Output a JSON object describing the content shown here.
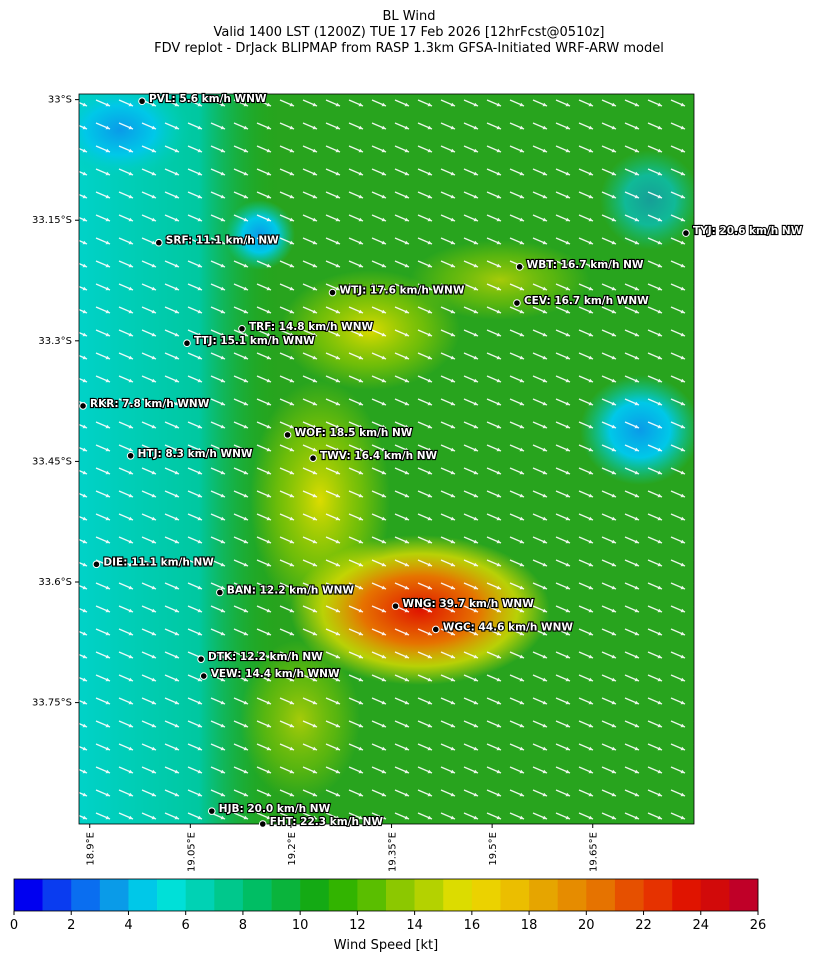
{
  "chart_data": {
    "type": "map",
    "title": "BL Wind",
    "subtitle": "Valid 1400 LST (1200Z) TUE 17 Feb 2026 [12hrFcst@0510z]",
    "subtitle2": "FDV replot - DrJack BLIPMAP from RASP 1.3km GFSA-Initiated WRF-ARW model",
    "xlim": [
      18.884,
      19.801
    ],
    "ylim": [
      -33.901,
      -32.993
    ],
    "xticks": [
      {
        "value": 18.9,
        "label": "18.9°E"
      },
      {
        "value": 19.05,
        "label": "19.05°E"
      },
      {
        "value": 19.2,
        "label": "19.2°E"
      },
      {
        "value": 19.35,
        "label": "19.35°E"
      },
      {
        "value": 19.5,
        "label": "19.5°E"
      },
      {
        "value": 19.65,
        "label": "19.65°E"
      }
    ],
    "yticks": [
      {
        "value": -33,
        "label": "33°S"
      },
      {
        "value": -33.15,
        "label": "33.15°S"
      },
      {
        "value": -33.3,
        "label": "33.3°S"
      },
      {
        "value": -33.45,
        "label": "33.45°S"
      },
      {
        "value": -33.6,
        "label": "33.6°S"
      },
      {
        "value": -33.75,
        "label": "33.75°S"
      }
    ],
    "stations": [
      {
        "label": "PVL: 5.6 km/h WNW",
        "lon": 18.978,
        "lat": -33.002
      },
      {
        "label": "SRF: 11.1 km/h NW",
        "lon": 19.003,
        "lat": -33.178
      },
      {
        "label": "TYJ: 20.6 km/h NW",
        "lon": 19.789,
        "lat": -33.166
      },
      {
        "label": "WBT: 16.7 km/h NW",
        "lon": 19.541,
        "lat": -33.208
      },
      {
        "label": "WTJ: 17.6 km/h WNW",
        "lon": 19.262,
        "lat": -33.24
      },
      {
        "label": "CEV: 16.7 km/h WNW",
        "lon": 19.537,
        "lat": -33.253
      },
      {
        "label": "TRF: 14.8 km/h WNW",
        "lon": 19.127,
        "lat": -33.285
      },
      {
        "label": "TTJ: 15.1 km/h WNW",
        "lon": 19.045,
        "lat": -33.303
      },
      {
        "label": "RKR: 7.8 km/h WNW",
        "lon": 18.89,
        "lat": -33.381
      },
      {
        "label": "WOF: 18.5 km/h NW",
        "lon": 19.195,
        "lat": -33.417
      },
      {
        "label": "HTJ: 8.3 km/h WNW",
        "lon": 18.961,
        "lat": -33.443
      },
      {
        "label": "TWV: 16.4 km/h NW",
        "lon": 19.233,
        "lat": -33.446
      },
      {
        "label": "DIE: 11.1 km/h NW",
        "lon": 18.91,
        "lat": -33.578
      },
      {
        "label": "BAN: 12.2 km/h WNW",
        "lon": 19.094,
        "lat": -33.613
      },
      {
        "label": "WNG: 39.7 km/h WNW",
        "lon": 19.356,
        "lat": -33.63
      },
      {
        "label": "WGC: 44.6 km/h WNW",
        "lon": 19.416,
        "lat": -33.659
      },
      {
        "label": "DTK: 12.2 km/h NW",
        "lon": 19.066,
        "lat": -33.696
      },
      {
        "label": "VEW: 14.4 km/h WNW",
        "lon": 19.07,
        "lat": -33.717
      },
      {
        "label": "HJB: 20.0 km/h NW",
        "lon": 19.082,
        "lat": -33.885
      },
      {
        "label": "FHT: 22.3 km/h NW",
        "lon": 19.158,
        "lat": -33.901
      }
    ],
    "colorbar": {
      "label": "Wind Speed [kt]",
      "lim": [
        0,
        26
      ],
      "ticks": [
        0,
        2,
        4,
        6,
        8,
        10,
        12,
        14,
        16,
        18,
        20,
        22,
        24,
        26
      ],
      "colors": [
        "#0000f0",
        "#0a3cf0",
        "#0a6ef0",
        "#0a9be8",
        "#00c8e8",
        "#00e0d8",
        "#00d2b4",
        "#00c88c",
        "#00be64",
        "#0ab43c",
        "#14aa14",
        "#32b400",
        "#5abe00",
        "#8cc800",
        "#b4d200",
        "#dcdc00",
        "#ebd200",
        "#ebbe00",
        "#e6a500",
        "#e68c00",
        "#e67300",
        "#e65000",
        "#e63200",
        "#e01400",
        "#d20a0a",
        "#c00028"
      ]
    }
  }
}
